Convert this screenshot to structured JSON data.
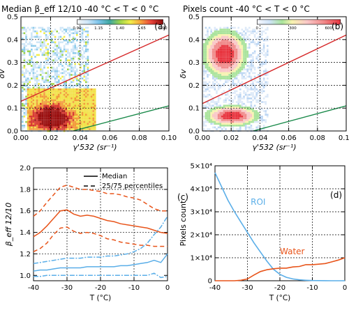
{
  "colors": {
    "red_line": "#d62728",
    "green_line": "#1a8a4a",
    "orange": "#e8541a",
    "blue": "#5aaee8",
    "grid": "#000000"
  },
  "chart_data": [
    {
      "panel": "a",
      "type": "heatmap",
      "title": "Median β_eff 12/10  -40 °C < T < 0 °C",
      "panel_label": "(a)",
      "xlabel": "γ'532 (sr⁻¹)",
      "ylabel": "δv",
      "xlim": [
        0.0,
        0.1
      ],
      "ylim": [
        0.0,
        0.5
      ],
      "xticks": [
        "0.00",
        "0.02",
        "0.04",
        "0.06",
        "0.08",
        "0.10"
      ],
      "yticks": [
        "0.0",
        "0.1",
        "0.2",
        "0.3",
        "0.4",
        "0.5"
      ],
      "colorbar": {
        "ticks": [
          "0.90",
          "1.15",
          "1.40",
          "1.65",
          "1.90"
        ],
        "min": 0.9,
        "max": 1.9
      },
      "lines": [
        {
          "color": "red",
          "x": [
            0.0,
            0.1
          ],
          "y": [
            0.13,
            0.42
          ]
        },
        {
          "color": "green",
          "x": [
            0.0,
            0.1
          ],
          "y": [
            -0.06,
            0.11
          ]
        }
      ],
      "grid": true
    },
    {
      "panel": "b",
      "type": "heatmap",
      "title": "Pixels count  -40 °C < T < 0 °C",
      "panel_label": "(b)",
      "xlabel": "γ'532 (sr⁻¹)",
      "ylabel": "δv",
      "xlim": [
        0.0,
        0.1
      ],
      "ylim": [
        0.0,
        0.5
      ],
      "xticks": [
        "0.00",
        "0.02",
        "0.04",
        "0.06",
        "0.08",
        "0.10"
      ],
      "yticks": [
        "0.0",
        "0.1",
        "0.2",
        "0.3",
        "0.4",
        "0.5"
      ],
      "colorbar": {
        "ticks": [
          "0",
          "300",
          "600"
        ],
        "min": 0,
        "max": 700
      },
      "lines": [
        {
          "color": "red",
          "x": [
            0.0,
            0.1
          ],
          "y": [
            0.12,
            0.42
          ]
        },
        {
          "color": "green",
          "x": [
            0.0,
            0.1
          ],
          "y": [
            -0.06,
            0.11
          ]
        }
      ],
      "grid": true
    },
    {
      "panel": "c",
      "type": "line",
      "panel_label": "(c)",
      "xlabel": "T (°C)",
      "ylabel": "β_eff 12/10",
      "xlim": [
        -40,
        0
      ],
      "ylim": [
        0.95,
        2.0
      ],
      "xticks": [
        "-40",
        "-30",
        "-20",
        "-10",
        "0"
      ],
      "yticks": [
        "1.0",
        "1.2",
        "1.4",
        "1.6",
        "1.8",
        "2.0"
      ],
      "legend": {
        "placement": "top-right",
        "entries": [
          "Median",
          "25/75 percentiles"
        ]
      },
      "x": [
        -40,
        -38,
        -36,
        -34,
        -32,
        -30,
        -28,
        -26,
        -24,
        -22,
        -20,
        -18,
        -16,
        -14,
        -12,
        -10,
        -8,
        -6,
        -4,
        -2,
        0
      ],
      "series": [
        {
          "color": "orange",
          "style": "solid",
          "values": [
            1.36,
            1.4,
            1.46,
            1.53,
            1.6,
            1.61,
            1.57,
            1.55,
            1.56,
            1.55,
            1.53,
            1.51,
            1.5,
            1.48,
            1.47,
            1.46,
            1.45,
            1.44,
            1.42,
            1.4,
            1.39
          ]
        },
        {
          "color": "orange",
          "style": "dashed",
          "values": [
            1.55,
            1.6,
            1.68,
            1.75,
            1.82,
            1.84,
            1.82,
            1.8,
            1.8,
            1.79,
            1.78,
            1.76,
            1.76,
            1.75,
            1.73,
            1.72,
            1.7,
            1.66,
            1.62,
            1.6,
            1.6
          ]
        },
        {
          "color": "orange",
          "style": "dashed",
          "values": [
            1.22,
            1.25,
            1.3,
            1.38,
            1.44,
            1.45,
            1.41,
            1.39,
            1.4,
            1.39,
            1.37,
            1.34,
            1.33,
            1.31,
            1.3,
            1.29,
            1.28,
            1.28,
            1.27,
            1.27,
            1.27
          ]
        },
        {
          "color": "blue",
          "style": "solid",
          "values": [
            1.04,
            1.05,
            1.05,
            1.06,
            1.07,
            1.07,
            1.07,
            1.07,
            1.08,
            1.08,
            1.08,
            1.08,
            1.08,
            1.09,
            1.09,
            1.1,
            1.11,
            1.12,
            1.14,
            1.12,
            1.2
          ]
        },
        {
          "color": "blue",
          "style": "dashed",
          "values": [
            1.11,
            1.12,
            1.13,
            1.14,
            1.15,
            1.16,
            1.16,
            1.16,
            1.17,
            1.17,
            1.17,
            1.18,
            1.18,
            1.19,
            1.2,
            1.22,
            1.25,
            1.3,
            1.38,
            1.45,
            1.55
          ]
        },
        {
          "color": "blue",
          "style": "dashed",
          "values": [
            0.99,
            0.99,
            1.0,
            1.0,
            1.0,
            1.0,
            1.0,
            1.0,
            1.0,
            1.0,
            1.0,
            1.0,
            1.0,
            1.0,
            1.0,
            1.0,
            1.0,
            1.0,
            1.02,
            0.98,
            0.99
          ]
        }
      ],
      "grid": true
    },
    {
      "panel": "d",
      "type": "line",
      "panel_label": "(d)",
      "xlabel": "T (°C)",
      "ylabel": "Pixels count",
      "xlim": [
        -40,
        0
      ],
      "ylim": [
        0,
        50000
      ],
      "xticks": [
        "-40",
        "-30",
        "-20",
        "-10",
        "0"
      ],
      "yticks": [
        "0",
        "1×10⁴",
        "2×10⁴",
        "3×10⁴",
        "4×10⁴",
        "5×10⁴"
      ],
      "x": [
        -40,
        -38,
        -36,
        -34,
        -32,
        -30,
        -28,
        -26,
        -24,
        -22,
        -20,
        -18,
        -16,
        -14,
        -12,
        -10,
        -8,
        -6,
        -4,
        -2,
        0
      ],
      "series": [
        {
          "name": "ROI",
          "color": "blue",
          "values": [
            47000,
            41000,
            35000,
            30000,
            25500,
            21000,
            16500,
            12500,
            8500,
            5000,
            2800,
            1500,
            800,
            400,
            200,
            100,
            50,
            20,
            10,
            5,
            0
          ]
        },
        {
          "name": "Water",
          "color": "orange",
          "values": [
            0,
            0,
            0,
            0,
            200,
            800,
            2500,
            4000,
            4800,
            5200,
            5500,
            5500,
            6000,
            6200,
            7000,
            7000,
            7200,
            7500,
            8200,
            9000,
            10000
          ]
        }
      ],
      "grid": true
    }
  ]
}
